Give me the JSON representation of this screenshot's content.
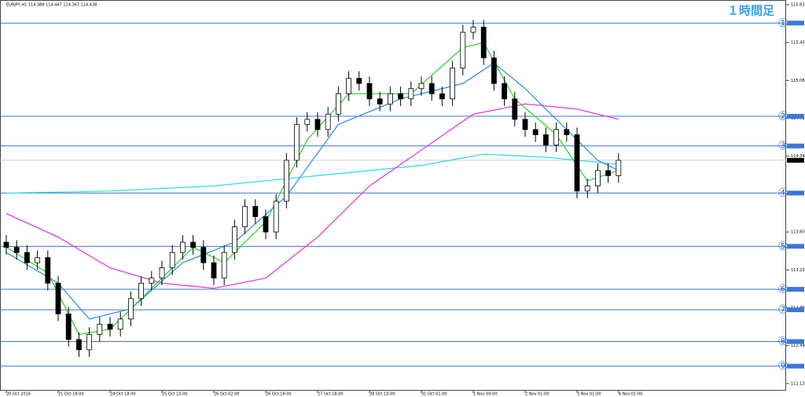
{
  "chart_data": {
    "type": "candlestick",
    "title": "EURJPY,H1 114.388 114.447 114.367 114.438",
    "subtitle": "１時間足",
    "ylim": [
      112.05,
      115.85
    ],
    "yticks": [
      {
        "value": 112.12,
        "label": "112.120"
      },
      {
        "value": 112.49,
        "label": "112.490"
      },
      {
        "value": 112.86,
        "label": "112.860"
      },
      {
        "value": 113.23,
        "label": "113.230"
      },
      {
        "value": 113.6,
        "label": "113.600"
      },
      {
        "value": 113.97,
        "label": "113.970"
      },
      {
        "value": 114.34,
        "label": "114.340"
      },
      {
        "value": 114.71,
        "label": "114.710"
      },
      {
        "value": 115.08,
        "label": "115.080"
      },
      {
        "value": 115.45,
        "label": "115.450"
      },
      {
        "value": 115.82,
        "label": "115.820"
      }
    ],
    "xticks": [
      {
        "value": 0,
        "label": "20 Oct 2016"
      },
      {
        "value": 5,
        "label": "21 Oct 18:00"
      },
      {
        "value": 10,
        "label": "24 Oct 18:00"
      },
      {
        "value": 15,
        "label": "25 Oct 10:00"
      },
      {
        "value": 20,
        "label": "26 Oct 02:00"
      },
      {
        "value": 25,
        "label": "26 Oct 18:00"
      },
      {
        "value": 30,
        "label": "27 Oct 18:00"
      },
      {
        "value": 35,
        "label": "28 Oct 10:00"
      },
      {
        "value": 40,
        "label": "31 Oct 01:00"
      },
      {
        "value": 45,
        "label": "1 Nov 09:00"
      },
      {
        "value": 50,
        "label": "2 Nov 01:00"
      },
      {
        "value": 55,
        "label": "3 Nov 01:00"
      },
      {
        "value": 59,
        "label": "4 Nov 01:00"
      }
    ],
    "open": [
      113.5,
      113.45,
      113.4,
      113.3,
      113.35,
      113.1,
      112.8,
      112.55,
      112.45,
      112.6,
      112.7,
      112.65,
      112.75,
      112.95,
      113.1,
      113.15,
      113.25,
      113.4,
      113.5,
      113.45,
      113.3,
      113.15,
      113.4,
      113.65,
      113.85,
      113.75,
      113.6,
      113.9,
      114.3,
      114.65,
      114.7,
      114.6,
      114.75,
      114.95,
      115.1,
      115.05,
      114.9,
      114.85,
      114.95,
      114.9,
      115.0,
      115.05,
      114.95,
      114.9,
      115.2,
      115.55,
      115.6,
      115.3,
      115.05,
      114.9,
      114.7,
      114.6,
      114.55,
      114.45,
      114.6,
      114.55,
      114.0,
      114.05,
      114.2,
      114.15
    ],
    "high": [
      113.57,
      113.52,
      113.47,
      113.42,
      113.42,
      113.17,
      112.87,
      112.62,
      112.67,
      112.77,
      112.77,
      112.82,
      113.02,
      113.17,
      113.22,
      113.32,
      113.47,
      113.57,
      113.57,
      113.52,
      113.37,
      113.47,
      113.72,
      113.92,
      113.92,
      113.82,
      113.97,
      114.37,
      114.72,
      114.77,
      114.77,
      114.82,
      115.02,
      115.17,
      115.17,
      115.12,
      114.97,
      115.02,
      115.02,
      115.07,
      115.12,
      115.12,
      115.02,
      115.27,
      115.62,
      115.67,
      115.67,
      115.37,
      115.12,
      114.97,
      114.77,
      114.67,
      114.62,
      114.67,
      114.67,
      114.62,
      114.12,
      114.27,
      114.27,
      114.37
    ],
    "low": [
      113.38,
      113.33,
      113.23,
      113.23,
      113.03,
      112.73,
      112.48,
      112.38,
      112.38,
      112.53,
      112.58,
      112.58,
      112.68,
      112.88,
      113.03,
      113.08,
      113.18,
      113.33,
      113.38,
      113.23,
      113.08,
      113.08,
      113.33,
      113.58,
      113.68,
      113.53,
      113.53,
      113.83,
      114.23,
      114.58,
      114.53,
      114.53,
      114.68,
      114.88,
      114.98,
      114.83,
      114.78,
      114.78,
      114.83,
      114.83,
      114.93,
      114.88,
      114.83,
      114.83,
      115.13,
      115.48,
      115.23,
      114.98,
      114.83,
      114.63,
      114.53,
      114.48,
      114.38,
      114.38,
      114.48,
      113.93,
      113.93,
      113.98,
      114.08,
      114.08
    ],
    "close": [
      113.45,
      113.4,
      113.3,
      113.35,
      113.1,
      112.8,
      112.55,
      112.45,
      112.6,
      112.7,
      112.65,
      112.75,
      112.95,
      113.1,
      113.15,
      113.25,
      113.4,
      113.5,
      113.45,
      113.3,
      113.15,
      113.4,
      113.65,
      113.85,
      113.75,
      113.6,
      113.9,
      114.3,
      114.65,
      114.7,
      114.6,
      114.75,
      114.95,
      115.1,
      115.05,
      114.9,
      114.85,
      114.95,
      114.9,
      115.0,
      115.05,
      114.95,
      114.9,
      115.2,
      115.55,
      115.6,
      115.3,
      115.05,
      114.9,
      114.7,
      114.6,
      114.55,
      114.45,
      114.6,
      114.55,
      114.0,
      114.05,
      114.2,
      114.15,
      114.3
    ],
    "series": [
      {
        "color": "#33e0e0",
        "x": [
          0,
          10,
          20,
          30,
          40,
          46,
          52,
          59
        ],
        "values": [
          113.98,
          114.0,
          114.05,
          114.15,
          114.25,
          114.36,
          114.33,
          114.26
        ]
      },
      {
        "color": "#e040e0",
        "x": [
          0,
          5,
          10,
          15,
          20,
          25,
          30,
          35,
          40,
          45,
          50,
          55,
          59
        ],
        "values": [
          113.78,
          113.55,
          113.25,
          113.1,
          113.05,
          113.15,
          113.55,
          114.05,
          114.4,
          114.75,
          114.85,
          114.8,
          114.7
        ]
      },
      {
        "color": "#3a8ee6",
        "x": [
          0,
          5,
          8,
          12,
          17,
          22,
          27,
          32,
          38,
          44,
          47,
          50,
          54,
          57,
          59
        ],
        "values": [
          113.4,
          113.1,
          112.75,
          112.85,
          113.3,
          113.5,
          113.95,
          114.65,
          114.9,
          115.05,
          115.25,
          115.0,
          114.6,
          114.3,
          114.2
        ]
      },
      {
        "color": "#33d633",
        "x": [
          0,
          4,
          7,
          10,
          14,
          18,
          21,
          25,
          29,
          33,
          39,
          44,
          46,
          49,
          53,
          56,
          59
        ],
        "values": [
          113.45,
          113.2,
          112.6,
          112.65,
          113.05,
          113.45,
          113.3,
          113.7,
          114.5,
          114.95,
          114.95,
          115.4,
          115.45,
          114.9,
          114.55,
          114.1,
          114.2
        ]
      }
    ],
    "last_price": 114.3,
    "levels": [
      {
        "value": 115.64,
        "label": "①"
      },
      {
        "value": 114.73,
        "label": "②"
      },
      {
        "value": 114.44,
        "label": "③"
      },
      {
        "value": 113.98,
        "label": "④"
      },
      {
        "value": 113.46,
        "label": "⑤"
      },
      {
        "value": 113.04,
        "label": "⑥"
      },
      {
        "value": 112.84,
        "label": "⑦"
      },
      {
        "value": 112.53,
        "label": "⑧"
      },
      {
        "value": 112.29,
        "label": "⑨"
      }
    ],
    "level_color": "#3a78d8"
  }
}
